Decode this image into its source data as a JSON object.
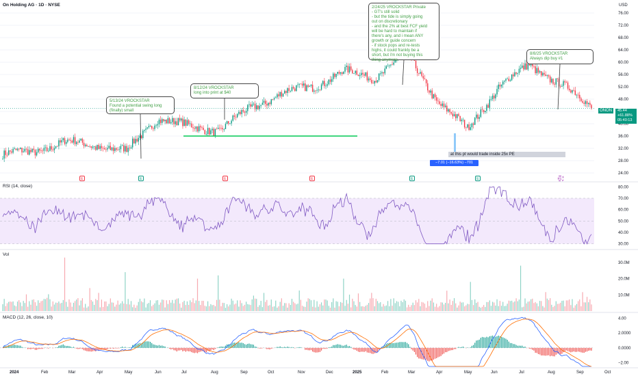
{
  "header": {
    "symbol_line": "On Holding AG · 1D · NYSE",
    "currency": "USD"
  },
  "price_axis_ticks": [
    "76.00",
    "72.00",
    "68.00",
    "64.00",
    "60.00",
    "56.00",
    "52.00",
    "48.00",
    "44.00",
    "40.00",
    "36.00",
    "32.00",
    "28.00",
    "24.00"
  ],
  "rsi_axis_ticks": [
    "80.00",
    "70.00",
    "60.00",
    "50.00",
    "40.00",
    "30.00"
  ],
  "vol_axis_ticks": [
    "30.0M",
    "20.0M",
    "10.0M"
  ],
  "macd_axis_ticks": [
    "4.00",
    "2.0000",
    "0.0000",
    "−2.00"
  ],
  "x_ticks": [
    "2024",
    "Feb",
    "Mar",
    "Apr",
    "May",
    "Jun",
    "Jul",
    "Aug",
    "Sep",
    "Oct",
    "Nov",
    "Dec",
    "2025",
    "Feb",
    "Mar",
    "Apr",
    "May",
    "Jun",
    "Jul",
    "Aug",
    "Sep",
    "Oct"
  ],
  "panels": {
    "rsi_label": "RSI (14, close)",
    "vol_label": "Vol",
    "macd_label": "MACD (12, 26, close, 10)"
  },
  "price_tag": {
    "ticker": "ONON",
    "price": "45.44",
    "change": "+61.88%",
    "countdown": "05:40:13"
  },
  "annotations": [
    {
      "text": "5/13/24 VROCKSTAR\nFound a potential swing long\n(finally) small"
    },
    {
      "text": "8/12/24 VROCKSTAR\nlong into print at $40"
    },
    {
      "text": "2/24/25 VROCKSTAR Private\n- GT's still solid\n- but the tide is simply going\nout on discretionary\n- and the 2% at best FCF yield\nwill be hard to maintain if\nthere's any, and i mean ANY\ngrowth or guide concern\n- if stock pops and re-tests\nhighs, it could frankly be a\nshort, but i'm not buying this\nthing anymore"
    },
    {
      "text": "8/8/25 VROCKSTAR\nAlways dip buy #1"
    }
  ],
  "pe_note": "at this pt would trade inside 25x PE",
  "measure_label": "−7.01 (−16.63%) −701",
  "earnings_markers": [
    "E",
    "E",
    "E",
    "E",
    "E",
    "E",
    "E"
  ],
  "colors": {
    "up": "#089981",
    "down": "#f23645",
    "rsi": "#7e57c2",
    "macd": "#2962ff",
    "signal": "#ff6d00",
    "annot_text": "#43a047",
    "support_line": "#00c853"
  },
  "chart_data": {
    "type": "candlestick",
    "title": "On Holding AG · 1D · NYSE",
    "price_close_approx": [
      {
        "x": "2024-01",
        "y": 30
      },
      {
        "x": "2024-02",
        "y": 31
      },
      {
        "x": "2024-03",
        "y": 34
      },
      {
        "x": "2024-04",
        "y": 33
      },
      {
        "x": "2024-05",
        "y": 31
      },
      {
        "x": "2024-06",
        "y": 42
      },
      {
        "x": "2024-07",
        "y": 39
      },
      {
        "x": "2024-08",
        "y": 38
      },
      {
        "x": "2024-09",
        "y": 45
      },
      {
        "x": "2024-10",
        "y": 50
      },
      {
        "x": "2024-11",
        "y": 52
      },
      {
        "x": "2024-12",
        "y": 57
      },
      {
        "x": "2025-01",
        "y": 55
      },
      {
        "x": "2025-02",
        "y": 63
      },
      {
        "x": "2025-03",
        "y": 48
      },
      {
        "x": "2025-04",
        "y": 38
      },
      {
        "x": "2025-05",
        "y": 52
      },
      {
        "x": "2025-06",
        "y": 59
      },
      {
        "x": "2025-07",
        "y": 53
      },
      {
        "x": "2025-08",
        "y": 45.44
      }
    ],
    "support_level": 36,
    "ylim": [
      22,
      78
    ],
    "rsi_range": [
      30,
      80
    ],
    "volume_range_millions": [
      0,
      35
    ],
    "macd_range": [
      -2.5,
      4.5
    ]
  }
}
